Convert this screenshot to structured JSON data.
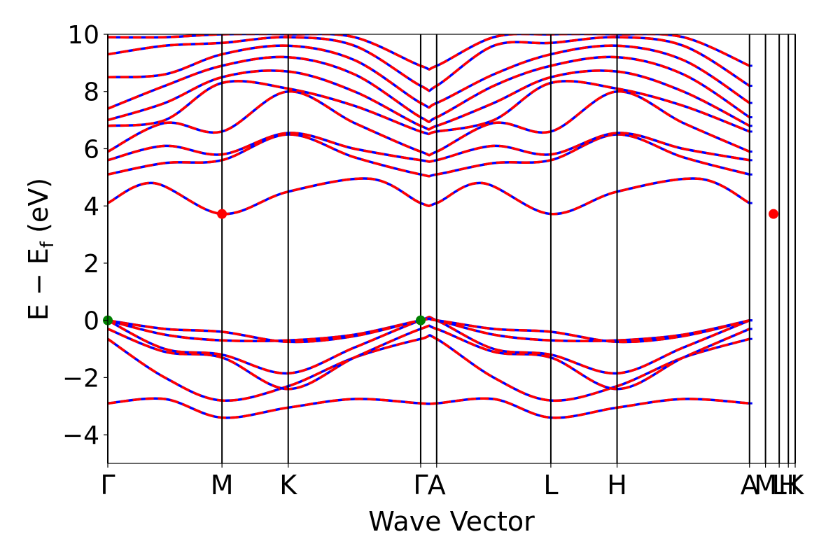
{
  "chart_data": {
    "type": "line",
    "title": "",
    "xlabel": "Wave Vector",
    "ylabel_parts": {
      "main": "E − E",
      "sub": "f",
      "unit": " (eV)"
    },
    "ylim": [
      -5,
      10
    ],
    "yticks": [
      -4,
      -2,
      0,
      2,
      4,
      6,
      8,
      10
    ],
    "ytick_labels": [
      "−4",
      "−2",
      "0",
      "2",
      "4",
      "6",
      "8",
      "10"
    ],
    "kpoints": [
      {
        "label": "Γ",
        "x": 0.0
      },
      {
        "label": "M",
        "x": 1.0
      },
      {
        "label": "K",
        "x": 1.58
      },
      {
        "label": "Γ",
        "x": 2.74
      },
      {
        "label": "A",
        "x": 2.88
      },
      {
        "label": "L",
        "x": 3.88
      },
      {
        "label": "H",
        "x": 4.46
      },
      {
        "label": "A",
        "x": 5.62
      },
      {
        "label": "M",
        "x": 5.76
      },
      {
        "label": "L",
        "x": 5.88
      },
      {
        "label": "H",
        "x": 5.96
      },
      {
        "label": "K",
        "x": 6.02
      }
    ],
    "xlim": [
      0,
      6.02
    ],
    "series_colors": {
      "primary": "#0000ff",
      "secondary": "#ff0000"
    },
    "markers": [
      {
        "x": 0.0,
        "y": 0.0,
        "color": "#008000"
      },
      {
        "x": 2.74,
        "y": 0.0,
        "color": "#008000"
      },
      {
        "x": 1.0,
        "y": 3.72,
        "color": "#ff0000"
      },
      {
        "x": 5.83,
        "y": 3.72,
        "color": "#ff0000"
      }
    ],
    "bands": [
      {
        "name": "",
        "x": [
          0,
          0.5,
          1.0,
          1.58,
          2.16,
          2.74,
          2.88,
          3.38,
          3.88,
          4.46,
          5.04,
          5.62
        ],
        "y": [
          -2.9,
          -2.75,
          -3.4,
          -3.05,
          -2.75,
          -2.9,
          -2.9,
          -2.75,
          -3.4,
          -3.05,
          -2.75,
          -2.9
        ]
      },
      {
        "name": "",
        "x": [
          0,
          0.5,
          1.0,
          1.58,
          2.16,
          2.74,
          2.88,
          3.38,
          3.88,
          4.46,
          5.04,
          5.62
        ],
        "y": [
          -0.65,
          -2.0,
          -2.8,
          -2.3,
          -1.3,
          -0.65,
          -0.65,
          -2.0,
          -2.8,
          -2.3,
          -1.3,
          -0.65
        ]
      },
      {
        "name": "",
        "x": [
          0,
          0.5,
          1.0,
          1.58,
          2.16,
          2.74,
          2.88,
          3.38,
          3.88,
          4.46,
          5.04,
          5.62
        ],
        "y": [
          -0.3,
          -1.1,
          -1.3,
          -2.4,
          -1.3,
          -0.3,
          -0.3,
          -1.1,
          -1.3,
          -2.4,
          -1.3,
          -0.3
        ]
      },
      {
        "name": "",
        "x": [
          0,
          0.5,
          1.0,
          1.58,
          2.16,
          2.74,
          2.88,
          3.38,
          3.88,
          4.46,
          5.04,
          5.62
        ],
        "y": [
          0.0,
          -1.0,
          -1.2,
          -1.85,
          -0.95,
          0.0,
          0.0,
          -1.0,
          -1.2,
          -1.85,
          -0.95,
          0.0
        ]
      },
      {
        "name": "",
        "x": [
          0,
          0.5,
          1.0,
          1.58,
          2.16,
          2.74,
          2.88,
          3.38,
          3.88,
          4.46,
          5.04,
          5.62
        ],
        "y": [
          0.0,
          -0.5,
          -0.7,
          -0.7,
          -0.5,
          0.0,
          0.0,
          -0.5,
          -0.7,
          -0.7,
          -0.5,
          0.0
        ]
      },
      {
        "name": "",
        "x": [
          0,
          0.5,
          1.0,
          1.58,
          2.16,
          2.74,
          2.88,
          3.38,
          3.88,
          4.46,
          5.04,
          5.62
        ],
        "y": [
          0.0,
          -0.3,
          -0.4,
          -0.75,
          -0.55,
          0.0,
          0.0,
          -0.3,
          -0.4,
          -0.75,
          -0.55,
          0.0
        ]
      },
      {
        "name": "",
        "x": [
          0,
          0.4,
          1.0,
          1.58,
          2.3,
          2.74,
          2.88,
          3.28,
          3.88,
          4.46,
          5.18,
          5.62
        ],
        "y": [
          4.1,
          4.8,
          3.72,
          4.5,
          4.95,
          4.1,
          4.1,
          4.8,
          3.72,
          4.5,
          4.95,
          4.1
        ]
      },
      {
        "name": "",
        "x": [
          0,
          0.5,
          1.0,
          1.58,
          2.16,
          2.74,
          2.88,
          3.38,
          3.88,
          4.46,
          5.04,
          5.62
        ],
        "y": [
          5.1,
          5.5,
          5.6,
          6.5,
          5.7,
          5.1,
          5.1,
          5.5,
          5.6,
          6.5,
          5.7,
          5.1
        ]
      },
      {
        "name": "",
        "x": [
          0,
          0.5,
          1.0,
          1.58,
          2.16,
          2.74,
          2.88,
          3.38,
          3.88,
          4.46,
          5.04,
          5.62
        ],
        "y": [
          5.6,
          6.1,
          5.8,
          6.55,
          6.0,
          5.6,
          5.6,
          6.1,
          5.8,
          6.55,
          6.0,
          5.6
        ]
      },
      {
        "name": "",
        "x": [
          0,
          0.5,
          1.0,
          1.58,
          2.16,
          2.74,
          2.88,
          3.38,
          3.88,
          4.46,
          5.04,
          5.62
        ],
        "y": [
          5.9,
          6.9,
          6.6,
          8.0,
          6.9,
          5.9,
          5.9,
          6.9,
          6.6,
          8.0,
          6.9,
          5.9
        ]
      },
      {
        "name": "",
        "x": [
          0,
          0.5,
          1.0,
          1.58,
          2.16,
          2.74,
          2.88,
          3.38,
          3.88,
          4.46,
          5.04,
          5.62
        ],
        "y": [
          6.8,
          7.0,
          8.3,
          8.1,
          7.5,
          6.6,
          6.6,
          7.0,
          8.3,
          8.1,
          7.5,
          6.6
        ]
      },
      {
        "name": "",
        "x": [
          0,
          0.5,
          1.0,
          1.58,
          2.16,
          2.74,
          2.88,
          3.38,
          3.88,
          4.46,
          5.04,
          5.62
        ],
        "y": [
          7.0,
          7.6,
          8.5,
          8.7,
          8.0,
          6.8,
          6.8,
          7.6,
          8.5,
          8.7,
          8.0,
          6.8
        ]
      },
      {
        "name": "",
        "x": [
          0,
          0.5,
          1.0,
          1.58,
          2.16,
          2.74,
          2.88,
          3.38,
          3.88,
          4.46,
          5.04,
          5.62
        ],
        "y": [
          7.4,
          8.2,
          8.9,
          9.2,
          8.6,
          7.1,
          7.1,
          8.2,
          8.9,
          9.2,
          8.6,
          7.1
        ]
      },
      {
        "name": "",
        "x": [
          0,
          0.5,
          1.0,
          1.58,
          2.16,
          2.74,
          2.88,
          3.38,
          3.88,
          4.46,
          5.04,
          5.62
        ],
        "y": [
          8.5,
          8.6,
          9.3,
          9.6,
          9.1,
          7.6,
          7.6,
          8.6,
          9.3,
          9.6,
          9.1,
          7.6
        ]
      },
      {
        "name": "",
        "x": [
          0,
          0.5,
          1.0,
          1.58,
          2.16,
          2.74,
          2.88,
          3.38,
          3.88,
          4.46,
          5.04,
          5.62
        ],
        "y": [
          9.3,
          9.6,
          9.7,
          9.9,
          9.6,
          8.2,
          8.2,
          9.6,
          9.7,
          9.9,
          9.6,
          8.2
        ]
      },
      {
        "name": "",
        "x": [
          0,
          0.5,
          1.0,
          1.58,
          2.16,
          2.74,
          2.88,
          3.38,
          3.88,
          4.46,
          5.04,
          5.62
        ],
        "y": [
          9.9,
          9.9,
          10.0,
          10.0,
          9.9,
          8.9,
          8.9,
          9.9,
          10.0,
          10.0,
          9.9,
          8.9
        ]
      }
    ]
  }
}
